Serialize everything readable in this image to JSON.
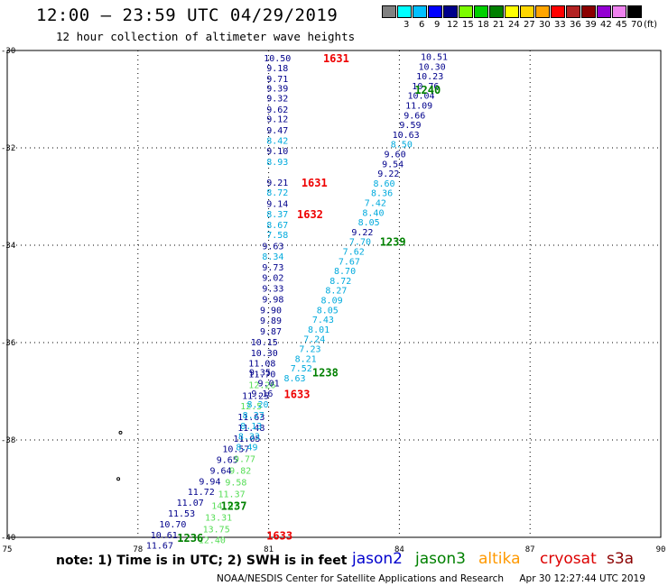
{
  "header": {
    "title": "12:00 – 23:59 UTC 04/29/2019",
    "subtitle": "12 hour collection of altimeter wave heights"
  },
  "legend": {
    "unit": "(ft)",
    "swatches": [
      {
        "label": "",
        "color": "#808080"
      },
      {
        "label": "3",
        "color": "#00ffff"
      },
      {
        "label": "6",
        "color": "#00c0ff"
      },
      {
        "label": "9",
        "color": "#0000ff"
      },
      {
        "label": "12",
        "color": "#00008b"
      },
      {
        "label": "15",
        "color": "#7cfc00"
      },
      {
        "label": "18",
        "color": "#00d000"
      },
      {
        "label": "21",
        "color": "#008000"
      },
      {
        "label": "24",
        "color": "#ffff00"
      },
      {
        "label": "27",
        "color": "#ffd700"
      },
      {
        "label": "30",
        "color": "#ffa500"
      },
      {
        "label": "33",
        "color": "#ff0000"
      },
      {
        "label": "36",
        "color": "#b22222"
      },
      {
        "label": "39",
        "color": "#8b0000"
      },
      {
        "label": "42",
        "color": "#9400d3"
      },
      {
        "label": "45",
        "color": "#ee82ee"
      },
      {
        "label": "70",
        "color": "#000000"
      }
    ]
  },
  "footer": {
    "note": "note: 1) Time is in UTC; 2) SWH is in feet",
    "satellites": [
      {
        "name": "jason2",
        "color": "#0000cd"
      },
      {
        "name": "jason3",
        "color": "#008000"
      },
      {
        "name": "altika",
        "color": "#ff9900"
      },
      {
        "name": "cryosat",
        "color": "#dd0000"
      },
      {
        "name": "s3a",
        "color": "#8b0000"
      }
    ],
    "credit": "NOAA/NESDIS Center for Satellite Applications and Research",
    "timestamp": "Apr 30 12:27:44 UTC 2019"
  },
  "colors": {
    "dark_blue": "#00008b",
    "light_blue": "#00aadd",
    "light_green": "#55dd55",
    "time_green": "#008000",
    "time_red": "#ee0000"
  },
  "chart_data": {
    "type": "scatter",
    "xlim": [
      75,
      90
    ],
    "ylim": [
      -40,
      -30
    ],
    "x_ticks": [
      "75",
      "78",
      "81",
      "84",
      "87",
      "90"
    ],
    "y_ticks": [
      "-30",
      "-32",
      "-34",
      "-36",
      "-38",
      "-40"
    ],
    "grid": true,
    "track1": {
      "name": "cryosat",
      "points": [
        {
          "lon": 81.2,
          "lat": -30.15,
          "v": "10.50",
          "c": "dark_blue"
        },
        {
          "lon": 81.2,
          "lat": -30.35,
          "v": "9.18",
          "c": "dark_blue"
        },
        {
          "lon": 81.2,
          "lat": -30.57,
          "v": "9.71",
          "c": "dark_blue"
        },
        {
          "lon": 81.2,
          "lat": -30.77,
          "v": "9.39",
          "c": "dark_blue"
        },
        {
          "lon": 81.2,
          "lat": -30.97,
          "v": "9.32",
          "c": "dark_blue"
        },
        {
          "lon": 81.2,
          "lat": -31.2,
          "v": "9.62",
          "c": "dark_blue"
        },
        {
          "lon": 81.2,
          "lat": -31.4,
          "v": "9.12",
          "c": "dark_blue"
        },
        {
          "lon": 81.2,
          "lat": -31.63,
          "v": "9.47",
          "c": "dark_blue"
        },
        {
          "lon": 81.2,
          "lat": -31.84,
          "v": "8.42",
          "c": "light_blue"
        },
        {
          "lon": 81.2,
          "lat": -32.06,
          "v": "9.10",
          "c": "dark_blue"
        },
        {
          "lon": 81.2,
          "lat": -32.28,
          "v": "8.93",
          "c": "light_blue"
        },
        {
          "lon": 81.2,
          "lat": -32.7,
          "v": "9.21",
          "c": "dark_blue"
        },
        {
          "lon": 81.2,
          "lat": -32.91,
          "v": "8.72",
          "c": "light_blue"
        },
        {
          "lon": 81.2,
          "lat": -33.14,
          "v": "9.14",
          "c": "dark_blue"
        },
        {
          "lon": 81.2,
          "lat": -33.35,
          "v": "8.37",
          "c": "light_blue"
        },
        {
          "lon": 81.2,
          "lat": -33.57,
          "v": "8.67",
          "c": "light_blue"
        },
        {
          "lon": 81.2,
          "lat": -33.78,
          "v": "7.58",
          "c": "light_blue"
        },
        {
          "lon": 81.1,
          "lat": -34.01,
          "v": "9.63",
          "c": "dark_blue"
        },
        {
          "lon": 81.1,
          "lat": -34.22,
          "v": "8.34",
          "c": "light_blue"
        },
        {
          "lon": 81.1,
          "lat": -34.44,
          "v": "9.73",
          "c": "dark_blue"
        },
        {
          "lon": 81.1,
          "lat": -34.66,
          "v": "9.02",
          "c": "dark_blue"
        },
        {
          "lon": 81.1,
          "lat": -34.88,
          "v": "9.33",
          "c": "dark_blue"
        },
        {
          "lon": 81.1,
          "lat": -35.1,
          "v": "9.98",
          "c": "dark_blue"
        },
        {
          "lon": 81.05,
          "lat": -35.32,
          "v": "9.90",
          "c": "dark_blue"
        },
        {
          "lon": 81.05,
          "lat": -35.54,
          "v": "9.89",
          "c": "dark_blue"
        },
        {
          "lon": 81.05,
          "lat": -35.76,
          "v": "9.87",
          "c": "dark_blue"
        },
        {
          "lon": 80.9,
          "lat": -35.98,
          "v": "10.15",
          "c": "dark_blue"
        },
        {
          "lon": 80.9,
          "lat": -36.2,
          "v": "10.30",
          "c": "dark_blue"
        },
        {
          "lon": 80.85,
          "lat": -36.42,
          "v": "11.08",
          "c": "dark_blue"
        },
        {
          "lon": 80.85,
          "lat": -36.64,
          "v": "11.70",
          "c": "dark_blue"
        },
        {
          "lon": 80.85,
          "lat": -36.86,
          "v": "12.26",
          "c": "light_green"
        },
        {
          "lon": 80.7,
          "lat": -37.08,
          "v": "11.25",
          "c": "dark_blue"
        },
        {
          "lon": 80.6,
          "lat": -37.3,
          "v": "12.5",
          "c": "light_green"
        },
        {
          "lon": 80.6,
          "lat": -37.52,
          "v": "11.63",
          "c": "dark_blue"
        },
        {
          "lon": 80.6,
          "lat": -37.74,
          "v": "11.48",
          "c": "dark_blue"
        },
        {
          "lon": 80.5,
          "lat": -37.96,
          "v": "11.05",
          "c": "dark_blue"
        },
        {
          "lon": 80.25,
          "lat": -38.18,
          "v": "10.57",
          "c": "dark_blue"
        },
        {
          "lon": 80.05,
          "lat": -38.4,
          "v": "9.65",
          "c": "dark_blue"
        },
        {
          "lon": 79.9,
          "lat": -38.62,
          "v": "9.64",
          "c": "dark_blue"
        },
        {
          "lon": 79.65,
          "lat": -38.84,
          "v": "9.94",
          "c": "dark_blue"
        },
        {
          "lon": 79.45,
          "lat": -39.06,
          "v": "11.72",
          "c": "dark_blue"
        },
        {
          "lon": 79.2,
          "lat": -39.28,
          "v": "11.07",
          "c": "dark_blue"
        },
        {
          "lon": 79.0,
          "lat": -39.5,
          "v": "11.53",
          "c": "dark_blue"
        },
        {
          "lon": 78.8,
          "lat": -39.72,
          "v": "10.70",
          "c": "dark_blue"
        },
        {
          "lon": 78.6,
          "lat": -39.94,
          "v": "10.61",
          "c": "dark_blue"
        },
        {
          "lon": 78.5,
          "lat": -40.16,
          "v": "11.67",
          "c": "dark_blue"
        }
      ]
    },
    "track2": {
      "name": "jason3",
      "points": [
        {
          "lon": 80.8,
          "lat": -36.6,
          "v": "9.35",
          "c": "dark_blue"
        },
        {
          "lon": 81.0,
          "lat": -36.82,
          "v": "9.01",
          "c": "dark_blue"
        },
        {
          "lon": 80.85,
          "lat": -37.04,
          "v": "9.16",
          "c": "dark_blue"
        },
        {
          "lon": 80.75,
          "lat": -37.26,
          "v": "8.20",
          "c": "light_blue"
        },
        {
          "lon": 80.65,
          "lat": -37.48,
          "v": "8.27",
          "c": "light_blue"
        },
        {
          "lon": 80.6,
          "lat": -37.7,
          "v": "8.13",
          "c": "light_blue"
        },
        {
          "lon": 80.55,
          "lat": -37.92,
          "v": "8.33",
          "c": "light_blue"
        },
        {
          "lon": 80.5,
          "lat": -38.14,
          "v": "8.49",
          "c": "light_blue"
        },
        {
          "lon": 80.45,
          "lat": -38.38,
          "v": "9.77",
          "c": "light_green"
        },
        {
          "lon": 80.35,
          "lat": -38.62,
          "v": "9.82",
          "c": "light_green"
        },
        {
          "lon": 80.25,
          "lat": -38.86,
          "v": "9.58",
          "c": "light_green"
        },
        {
          "lon": 80.15,
          "lat": -39.1,
          "v": "11.37",
          "c": "light_green"
        },
        {
          "lon": 80.0,
          "lat": -39.34,
          "v": "14.97",
          "c": "light_green"
        },
        {
          "lon": 79.85,
          "lat": -39.58,
          "v": "13.31",
          "c": "light_green"
        },
        {
          "lon": 79.8,
          "lat": -39.82,
          "v": "13.75",
          "c": "light_green"
        },
        {
          "lon": 79.7,
          "lat": -40.05,
          "v": "12.40",
          "c": "light_green"
        }
      ]
    },
    "track3": {
      "name": "jason2",
      "points": [
        {
          "lon": 84.8,
          "lat": -30.12,
          "v": "10.51",
          "c": "dark_blue"
        },
        {
          "lon": 84.75,
          "lat": -30.32,
          "v": "10.30",
          "c": "dark_blue"
        },
        {
          "lon": 84.7,
          "lat": -30.52,
          "v": "10.23",
          "c": "dark_blue"
        },
        {
          "lon": 84.6,
          "lat": -30.72,
          "v": "10.76",
          "c": "dark_blue"
        },
        {
          "lon": 84.5,
          "lat": -30.92,
          "v": "10.04",
          "c": "dark_blue"
        },
        {
          "lon": 84.45,
          "lat": -31.12,
          "v": "11.09",
          "c": "dark_blue"
        },
        {
          "lon": 84.35,
          "lat": -31.32,
          "v": "9.66",
          "c": "dark_blue"
        },
        {
          "lon": 84.25,
          "lat": -31.52,
          "v": "9.59",
          "c": "dark_blue"
        },
        {
          "lon": 84.15,
          "lat": -31.72,
          "v": "10.63",
          "c": "dark_blue"
        },
        {
          "lon": 84.05,
          "lat": -31.92,
          "v": "8.50",
          "c": "light_blue"
        },
        {
          "lon": 83.9,
          "lat": -32.12,
          "v": "9.60",
          "c": "dark_blue"
        },
        {
          "lon": 83.85,
          "lat": -32.32,
          "v": "9.54",
          "c": "dark_blue"
        },
        {
          "lon": 83.75,
          "lat": -32.52,
          "v": "9.22",
          "c": "dark_blue"
        },
        {
          "lon": 83.65,
          "lat": -32.72,
          "v": "8.60",
          "c": "light_blue"
        },
        {
          "lon": 83.6,
          "lat": -32.92,
          "v": "8.36",
          "c": "light_blue"
        },
        {
          "lon": 83.45,
          "lat": -33.12,
          "v": "7.42",
          "c": "light_blue"
        },
        {
          "lon": 83.4,
          "lat": -33.32,
          "v": "8.40",
          "c": "light_blue"
        },
        {
          "lon": 83.3,
          "lat": -33.52,
          "v": "8.05",
          "c": "light_blue"
        },
        {
          "lon": 83.15,
          "lat": -33.72,
          "v": "9.22",
          "c": "dark_blue"
        },
        {
          "lon": 83.1,
          "lat": -33.92,
          "v": "7.70",
          "c": "light_blue"
        },
        {
          "lon": 82.95,
          "lat": -34.12,
          "v": "7.62",
          "c": "light_blue"
        },
        {
          "lon": 82.85,
          "lat": -34.32,
          "v": "7.67",
          "c": "light_blue"
        },
        {
          "lon": 82.75,
          "lat": -34.52,
          "v": "8.70",
          "c": "light_blue"
        },
        {
          "lon": 82.65,
          "lat": -34.72,
          "v": "8.72",
          "c": "light_blue"
        },
        {
          "lon": 82.55,
          "lat": -34.92,
          "v": "8.27",
          "c": "light_blue"
        },
        {
          "lon": 82.45,
          "lat": -35.12,
          "v": "8.09",
          "c": "light_blue"
        },
        {
          "lon": 82.35,
          "lat": -35.32,
          "v": "8.05",
          "c": "light_blue"
        },
        {
          "lon": 82.25,
          "lat": -35.52,
          "v": "7.43",
          "c": "light_blue"
        },
        {
          "lon": 82.15,
          "lat": -35.72,
          "v": "8.01",
          "c": "light_blue"
        },
        {
          "lon": 82.05,
          "lat": -35.92,
          "v": "7.24",
          "c": "light_blue"
        },
        {
          "lon": 81.95,
          "lat": -36.12,
          "v": "7.23",
          "c": "light_blue"
        },
        {
          "lon": 81.85,
          "lat": -36.32,
          "v": "8.21",
          "c": "light_blue"
        },
        {
          "lon": 81.75,
          "lat": -36.52,
          "v": "7.52",
          "c": "light_blue"
        },
        {
          "lon": 81.6,
          "lat": -36.72,
          "v": "8.63",
          "c": "light_blue"
        }
      ]
    },
    "time_labels": [
      {
        "lon": 82.55,
        "lat": -30.15,
        "v": "1631",
        "c": "time_red"
      },
      {
        "lon": 84.65,
        "lat": -30.8,
        "v": "1240",
        "c": "time_green"
      },
      {
        "lon": 82.05,
        "lat": -32.7,
        "v": "1631",
        "c": "time_red"
      },
      {
        "lon": 81.95,
        "lat": -33.35,
        "v": "1632",
        "c": "time_red"
      },
      {
        "lon": 83.85,
        "lat": -33.92,
        "v": "1239",
        "c": "time_green"
      },
      {
        "lon": 82.3,
        "lat": -36.6,
        "v": "1238",
        "c": "time_green"
      },
      {
        "lon": 81.65,
        "lat": -37.05,
        "v": "1633",
        "c": "time_red"
      },
      {
        "lon": 80.2,
        "lat": -39.34,
        "v": "1237",
        "c": "time_green"
      },
      {
        "lon": 79.2,
        "lat": -40.0,
        "v": "1236",
        "c": "time_green"
      },
      {
        "lon": 81.25,
        "lat": -39.95,
        "v": "1633",
        "c": "time_red"
      }
    ],
    "land_marks": [
      {
        "lon": 77.6,
        "lat": -37.85
      },
      {
        "lon": 77.55,
        "lat": -38.8
      }
    ]
  }
}
